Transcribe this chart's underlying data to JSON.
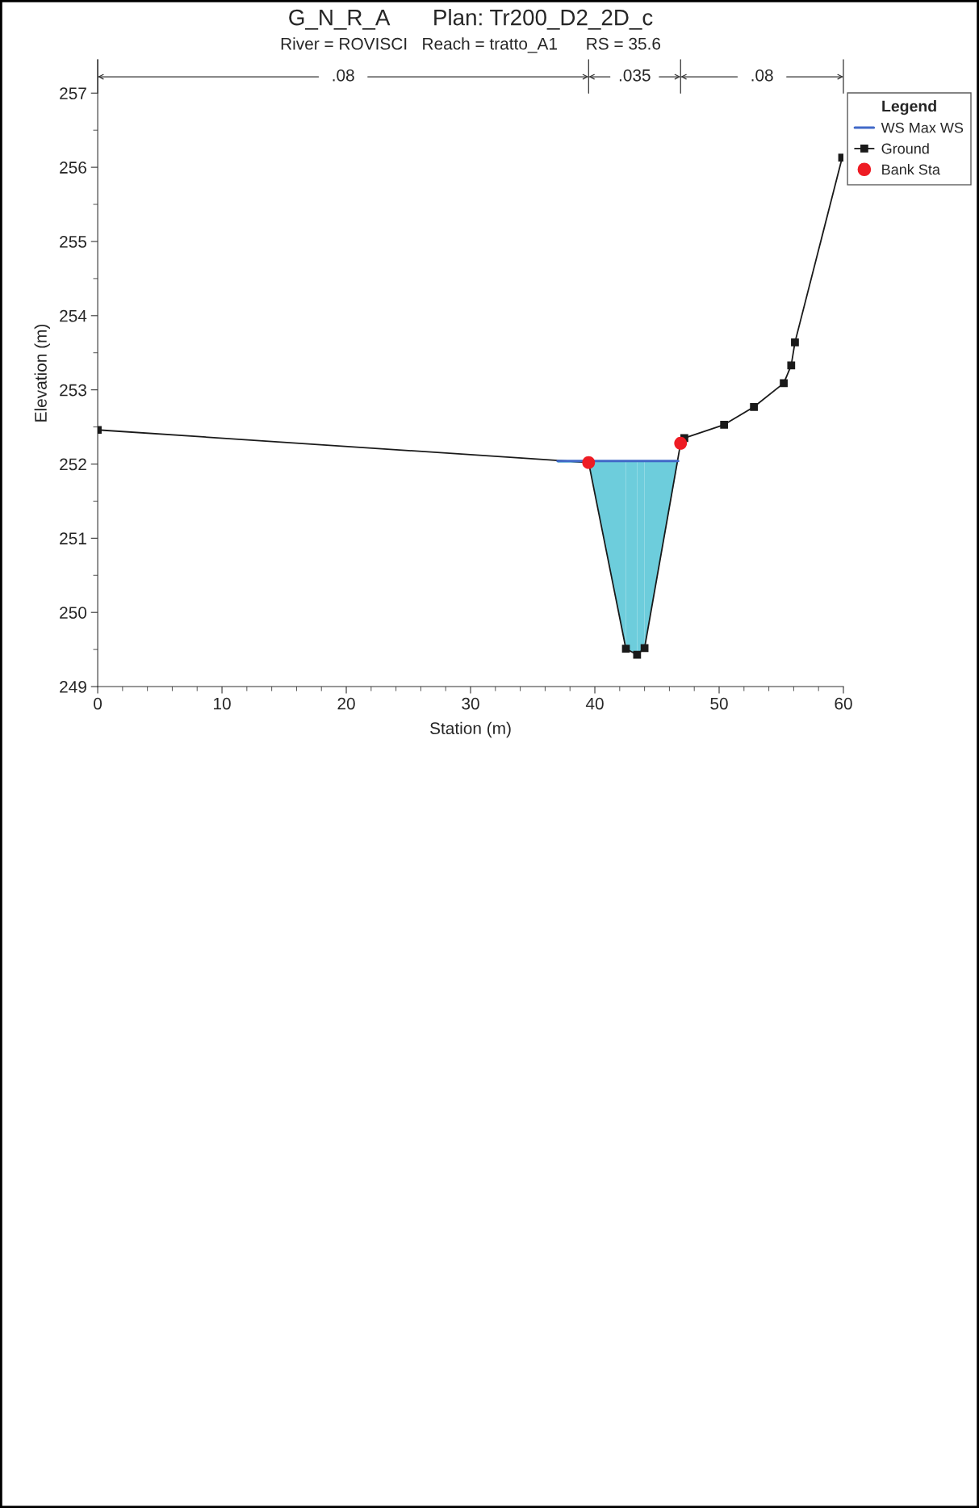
{
  "chart_data": {
    "type": "line",
    "title": "G_N_R_A       Plan: Tr200_D2_2D_c",
    "subtitle": "River = ROVISCI   Reach = tratto_A1      RS = 35.6",
    "xlabel": "Station (m)",
    "ylabel": "Elevation (m)",
    "legend_title": "Legend",
    "xlim": [
      0,
      60
    ],
    "xticks": [
      0,
      10,
      20,
      30,
      40,
      50,
      60
    ],
    "ylim": [
      249,
      257.45
    ],
    "yticks": [
      249,
      250,
      251,
      252,
      253,
      254,
      255,
      256,
      257
    ],
    "grid": false,
    "legend": "top right",
    "series": [
      {
        "type": "line",
        "name": "WS Max WS",
        "color": "#4169c8",
        "colors": [
          "#6dcddc",
          "#6dcddc",
          "#6dcddc",
          "#6dcddc",
          "#6dcddc",
          "#6dcddc"
        ],
        "marker": "none",
        "x": [
          37.0,
          39.5,
          42.5,
          43.4,
          44.0,
          46.7
        ],
        "values": [
          252.04,
          252.04,
          252.04,
          252.04,
          252.04,
          252.04
        ],
        "lower": [
          252.02,
          252.02,
          249.51,
          249.43,
          249.52,
          252.04
        ],
        "upper": [
          252.04,
          252.04,
          252.04,
          252.04,
          252.04,
          252.04
        ]
      },
      {
        "type": "line",
        "name": "Ground",
        "color": "#1a1a1a",
        "marker": "square",
        "x": [
          0,
          39.5,
          42.5,
          43.4,
          44.0,
          46.9,
          47.2,
          50.4,
          52.8,
          55.2,
          55.8,
          56.1,
          59.9
        ],
        "values": [
          252.46,
          252.02,
          249.51,
          249.43,
          249.52,
          252.28,
          252.35,
          252.53,
          252.77,
          253.09,
          253.33,
          253.64,
          256.13
        ]
      },
      {
        "type": "scatter",
        "name": "Bank Sta",
        "color": "#ee1c24",
        "marker": "circle",
        "x": [
          39.5,
          46.9
        ],
        "values": [
          252.02,
          252.28
        ]
      }
    ],
    "annotations": [
      ".08",
      ".035",
      ".08"
    ]
  }
}
